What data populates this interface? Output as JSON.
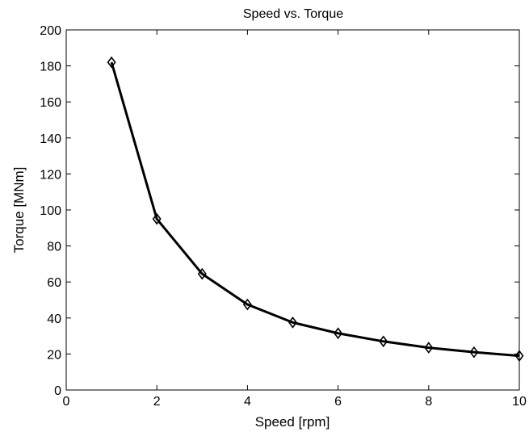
{
  "chart_data": {
    "type": "line",
    "title": "Speed vs.  Torque",
    "xlabel": "Speed [rpm]",
    "ylabel": "Torque [MNm]",
    "xlim": [
      0,
      10
    ],
    "ylim": [
      0,
      200
    ],
    "xticks": [
      0,
      2,
      4,
      6,
      8,
      10
    ],
    "yticks": [
      0,
      20,
      40,
      60,
      80,
      100,
      120,
      140,
      160,
      180,
      200
    ],
    "grid": false,
    "marker": "diamond",
    "line_color": "#000000",
    "series": [
      {
        "x": [
          1,
          2,
          3,
          4,
          5,
          6,
          7,
          8,
          9,
          10
        ],
        "y": [
          182,
          95,
          64.5,
          47.5,
          37.5,
          31.5,
          27,
          23.5,
          21,
          19
        ]
      }
    ]
  }
}
